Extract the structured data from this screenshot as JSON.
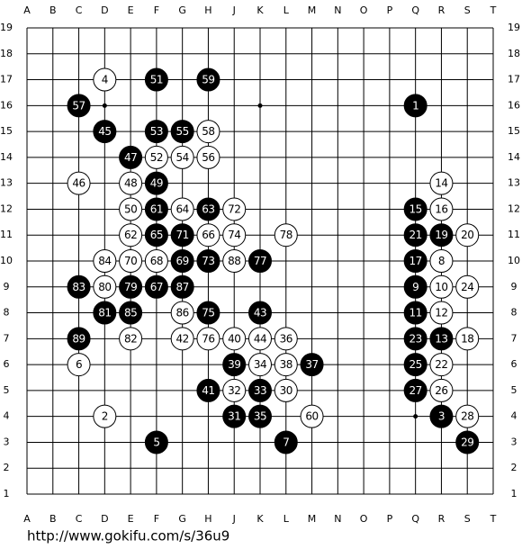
{
  "board": {
    "columns": [
      "A",
      "B",
      "C",
      "D",
      "E",
      "F",
      "G",
      "H",
      "J",
      "K",
      "L",
      "M",
      "N",
      "O",
      "P",
      "Q",
      "R",
      "S",
      "T"
    ],
    "rows": [
      19,
      18,
      17,
      16,
      15,
      14,
      13,
      12,
      11,
      10,
      9,
      8,
      7,
      6,
      5,
      4,
      3,
      2,
      1
    ],
    "stones": [
      {
        "col": "D",
        "row": 17,
        "color": "white",
        "label": 4
      },
      {
        "col": "F",
        "row": 17,
        "color": "black",
        "label": 51
      },
      {
        "col": "H",
        "row": 17,
        "color": "black",
        "label": 59
      },
      {
        "col": "C",
        "row": 16,
        "color": "black",
        "label": 57
      },
      {
        "col": "Q",
        "row": 16,
        "color": "black",
        "label": 1
      },
      {
        "col": "D",
        "row": 15,
        "color": "black",
        "label": 45
      },
      {
        "col": "F",
        "row": 15,
        "color": "black",
        "label": 53
      },
      {
        "col": "G",
        "row": 15,
        "color": "black",
        "label": 55
      },
      {
        "col": "H",
        "row": 15,
        "color": "white",
        "label": 58
      },
      {
        "col": "E",
        "row": 14,
        "color": "black",
        "label": 47
      },
      {
        "col": "F",
        "row": 14,
        "color": "white",
        "label": 52
      },
      {
        "col": "G",
        "row": 14,
        "color": "white",
        "label": 54
      },
      {
        "col": "H",
        "row": 14,
        "color": "white",
        "label": 56
      },
      {
        "col": "C",
        "row": 13,
        "color": "white",
        "label": 46
      },
      {
        "col": "E",
        "row": 13,
        "color": "white",
        "label": 48
      },
      {
        "col": "F",
        "row": 13,
        "color": "black",
        "label": 49
      },
      {
        "col": "R",
        "row": 13,
        "color": "white",
        "label": 14
      },
      {
        "col": "E",
        "row": 12,
        "color": "white",
        "label": 50
      },
      {
        "col": "F",
        "row": 12,
        "color": "black",
        "label": 61
      },
      {
        "col": "G",
        "row": 12,
        "color": "white",
        "label": 64
      },
      {
        "col": "H",
        "row": 12,
        "color": "black",
        "label": 63
      },
      {
        "col": "J",
        "row": 12,
        "color": "white",
        "label": 72
      },
      {
        "col": "Q",
        "row": 12,
        "color": "black",
        "label": 15
      },
      {
        "col": "R",
        "row": 12,
        "color": "white",
        "label": 16
      },
      {
        "col": "E",
        "row": 11,
        "color": "white",
        "label": 62
      },
      {
        "col": "F",
        "row": 11,
        "color": "black",
        "label": 65
      },
      {
        "col": "G",
        "row": 11,
        "color": "black",
        "label": 71
      },
      {
        "col": "H",
        "row": 11,
        "color": "white",
        "label": 66
      },
      {
        "col": "J",
        "row": 11,
        "color": "white",
        "label": 74
      },
      {
        "col": "L",
        "row": 11,
        "color": "white",
        "label": 78
      },
      {
        "col": "Q",
        "row": 11,
        "color": "black",
        "label": 21
      },
      {
        "col": "R",
        "row": 11,
        "color": "black",
        "label": 19
      },
      {
        "col": "S",
        "row": 11,
        "color": "white",
        "label": 20
      },
      {
        "col": "D",
        "row": 10,
        "color": "white",
        "label": 84
      },
      {
        "col": "E",
        "row": 10,
        "color": "white",
        "label": 70
      },
      {
        "col": "F",
        "row": 10,
        "color": "white",
        "label": 68
      },
      {
        "col": "G",
        "row": 10,
        "color": "black",
        "label": 69
      },
      {
        "col": "H",
        "row": 10,
        "color": "black",
        "label": 73
      },
      {
        "col": "J",
        "row": 10,
        "color": "white",
        "label": 88
      },
      {
        "col": "K",
        "row": 10,
        "color": "black",
        "label": 77
      },
      {
        "col": "Q",
        "row": 10,
        "color": "black",
        "label": 17
      },
      {
        "col": "R",
        "row": 10,
        "color": "white",
        "label": 8
      },
      {
        "col": "C",
        "row": 9,
        "color": "black",
        "label": 83
      },
      {
        "col": "D",
        "row": 9,
        "color": "white",
        "label": 80
      },
      {
        "col": "E",
        "row": 9,
        "color": "black",
        "label": 79
      },
      {
        "col": "F",
        "row": 9,
        "color": "black",
        "label": 67
      },
      {
        "col": "G",
        "row": 9,
        "color": "black",
        "label": 87
      },
      {
        "col": "Q",
        "row": 9,
        "color": "black",
        "label": 9
      },
      {
        "col": "R",
        "row": 9,
        "color": "white",
        "label": 10
      },
      {
        "col": "S",
        "row": 9,
        "color": "white",
        "label": 24
      },
      {
        "col": "D",
        "row": 8,
        "color": "black",
        "label": 81
      },
      {
        "col": "E",
        "row": 8,
        "color": "black",
        "label": 85
      },
      {
        "col": "G",
        "row": 8,
        "color": "white",
        "label": 86
      },
      {
        "col": "H",
        "row": 8,
        "color": "black",
        "label": 75
      },
      {
        "col": "K",
        "row": 8,
        "color": "black",
        "label": 43
      },
      {
        "col": "Q",
        "row": 8,
        "color": "black",
        "label": 11
      },
      {
        "col": "R",
        "row": 8,
        "color": "white",
        "label": 12
      },
      {
        "col": "C",
        "row": 7,
        "color": "black",
        "label": 89
      },
      {
        "col": "E",
        "row": 7,
        "color": "white",
        "label": 82
      },
      {
        "col": "G",
        "row": 7,
        "color": "white",
        "label": 42
      },
      {
        "col": "H",
        "row": 7,
        "color": "white",
        "label": 76
      },
      {
        "col": "J",
        "row": 7,
        "color": "white",
        "label": 40
      },
      {
        "col": "K",
        "row": 7,
        "color": "white",
        "label": 44
      },
      {
        "col": "L",
        "row": 7,
        "color": "white",
        "label": 36
      },
      {
        "col": "Q",
        "row": 7,
        "color": "black",
        "label": 23
      },
      {
        "col": "R",
        "row": 7,
        "color": "black",
        "label": 13
      },
      {
        "col": "S",
        "row": 7,
        "color": "white",
        "label": 18
      },
      {
        "col": "C",
        "row": 6,
        "color": "white",
        "label": 6
      },
      {
        "col": "J",
        "row": 6,
        "color": "black",
        "label": 39
      },
      {
        "col": "K",
        "row": 6,
        "color": "white",
        "label": 34
      },
      {
        "col": "L",
        "row": 6,
        "color": "white",
        "label": 38
      },
      {
        "col": "M",
        "row": 6,
        "color": "black",
        "label": 37
      },
      {
        "col": "Q",
        "row": 6,
        "color": "black",
        "label": 25
      },
      {
        "col": "R",
        "row": 6,
        "color": "white",
        "label": 22
      },
      {
        "col": "H",
        "row": 5,
        "color": "black",
        "label": 41
      },
      {
        "col": "J",
        "row": 5,
        "color": "white",
        "label": 32
      },
      {
        "col": "K",
        "row": 5,
        "color": "black",
        "label": 33
      },
      {
        "col": "L",
        "row": 5,
        "color": "white",
        "label": 30
      },
      {
        "col": "Q",
        "row": 5,
        "color": "black",
        "label": 27
      },
      {
        "col": "R",
        "row": 5,
        "color": "white",
        "label": 26
      },
      {
        "col": "D",
        "row": 4,
        "color": "white",
        "label": 2
      },
      {
        "col": "J",
        "row": 4,
        "color": "black",
        "label": 31
      },
      {
        "col": "K",
        "row": 4,
        "color": "black",
        "label": 35
      },
      {
        "col": "M",
        "row": 4,
        "color": "white",
        "label": 60
      },
      {
        "col": "R",
        "row": 4,
        "color": "black",
        "label": 3
      },
      {
        "col": "S",
        "row": 4,
        "color": "white",
        "label": 28
      },
      {
        "col": "F",
        "row": 3,
        "color": "black",
        "label": 5
      },
      {
        "col": "L",
        "row": 3,
        "color": "black",
        "label": 7
      },
      {
        "col": "S",
        "row": 3,
        "color": "black",
        "label": 29
      }
    ]
  },
  "footer": {
    "url": "http://www.gokifu.com/s/36u9"
  }
}
